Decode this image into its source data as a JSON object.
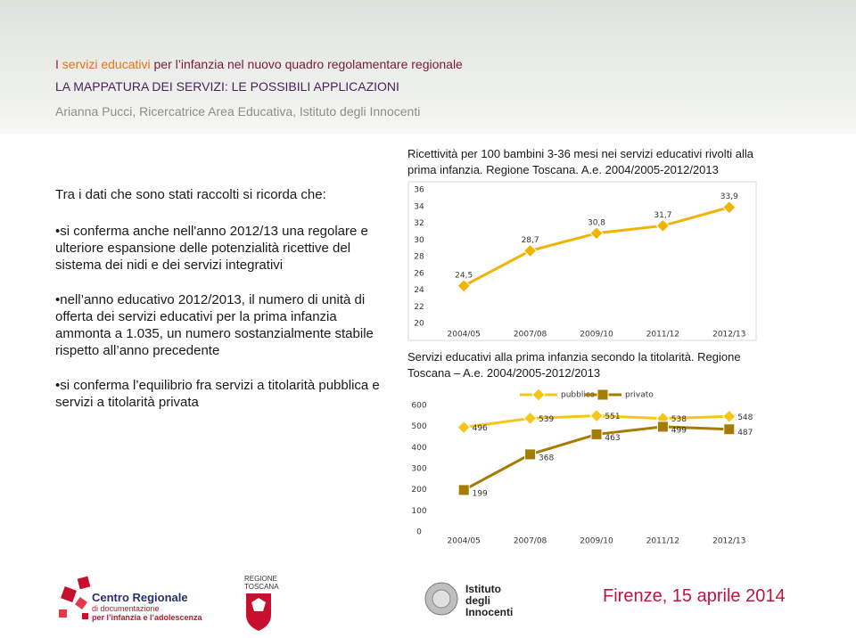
{
  "header": {
    "title": [
      "I",
      "servizi educativi",
      "per l’infanzia nel nuovo quadro regolamentare regionale"
    ],
    "subtitle": "LA MAPPATURA DEI SERVIZI: LE POSSIBILI APPLICAZIONI",
    "authors": "Arianna Pucci, Ricercatrice Area Educativa, Istituto degli Innocenti"
  },
  "body": {
    "intro": "Tra i dati che sono stati raccolti si ricorda che:",
    "bullets": [
      "si conferma anche nell'anno 2012/13 una regolare e ulteriore espansione delle potenzialità ricettive del sistema dei nidi e dei servizi integrativi",
      "nell’anno educativo 2012/2013, il numero di unità di offerta dei servizi educativi per la prima infanzia ammonta a 1.035, un numero sostanzialmente stabile rispetto all’anno precedente",
      "si conferma l’equilibrio fra servizi a titolarità pubblica e servizi a titolarità privata"
    ]
  },
  "chart_data": [
    {
      "type": "line",
      "title": "Ricettività per 100 bambini 3-36 mesi nei servizi educativi rivolti alla prima infanzia. Regione Toscana. A.e. 2004/2005-2012/2013",
      "categories": [
        "2004/05",
        "2007/08",
        "2009/10",
        "2011/12",
        "2012/13"
      ],
      "series": [
        {
          "color": "#f0b400",
          "values": [
            24.5,
            28.7,
            30.8,
            31.7,
            33.9
          ],
          "value_labels": [
            "24,5",
            "28,7",
            "30,8",
            "31,7",
            "33,9"
          ]
        }
      ],
      "ylim": [
        20,
        36
      ],
      "yticks": [
        20,
        22,
        24,
        26,
        28,
        30,
        32,
        34,
        36
      ],
      "grid": false
    },
    {
      "type": "line",
      "title": "Servizi educativi alla prima infanzia secondo la titolarità. Regione Toscana – A.e. 2004/2005-2012/2013",
      "categories": [
        "2004/05",
        "2007/08",
        "2009/10",
        "2011/12",
        "2012/13"
      ],
      "series": [
        {
          "name": "pubblico",
          "color": "#f5c518",
          "marker": "diamond",
          "values": [
            496,
            539,
            551,
            538,
            548
          ]
        },
        {
          "name": "privato",
          "color": "#a67c00",
          "marker": "square",
          "values": [
            199,
            368,
            463,
            499,
            487
          ]
        }
      ],
      "ylim": [
        0,
        600
      ],
      "yticks": [
        0,
        100,
        200,
        300,
        400,
        500,
        600
      ],
      "grid": false,
      "legend": "top"
    }
  ],
  "footer": {
    "centro": [
      "Centro Regionale",
      "di documentazione",
      "per l’infanzia e l’adolescenza"
    ],
    "regione": [
      "REGIONE",
      "TOSCANA"
    ],
    "istituto": [
      "Istituto",
      "degli",
      "Innocenti"
    ],
    "place_date": "Firenze, 15 aprile 2014"
  }
}
